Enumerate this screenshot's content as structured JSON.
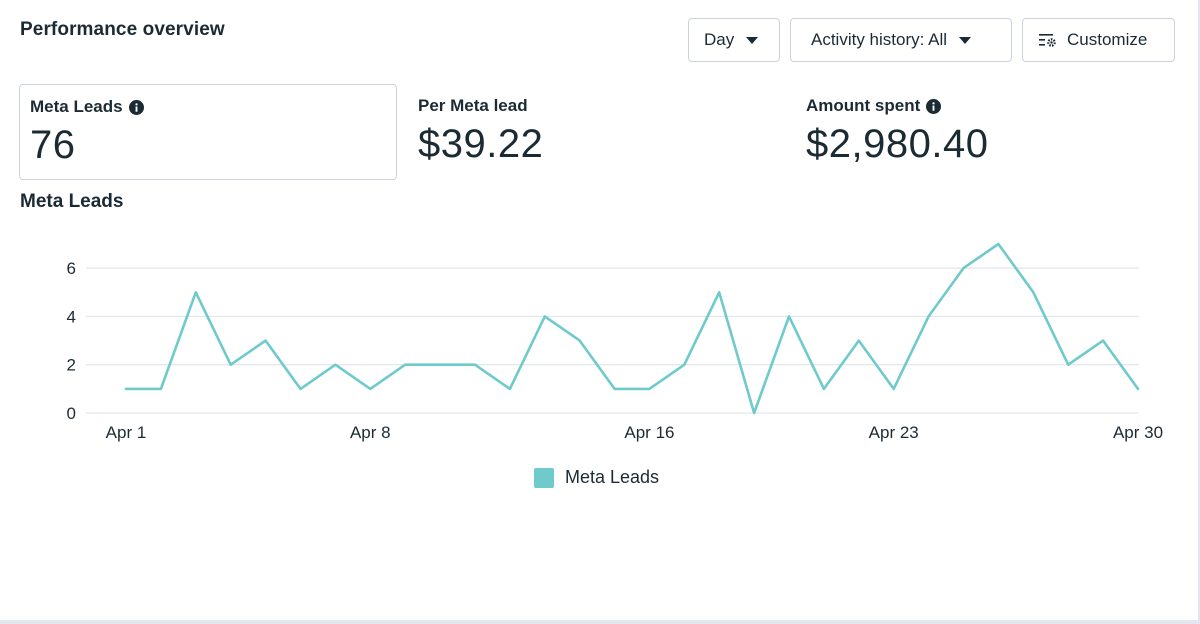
{
  "header": {
    "title": "Performance overview",
    "day_label": "Day",
    "activity_label": "Activity history: All",
    "customize_label": "Customize"
  },
  "metrics": [
    {
      "label": "Meta Leads",
      "value": "76",
      "info": true
    },
    {
      "label": "Per Meta lead",
      "value": "$39.22",
      "info": false
    },
    {
      "label": "Amount spent",
      "value": "$2,980.40",
      "info": true
    }
  ],
  "icons": {
    "info": "info-icon",
    "caret": "caret-down-icon",
    "customize": "customize-settings-icon"
  },
  "colors": {
    "series": "#6fcacb",
    "grid": "#e3e6ea",
    "text": "#1c2b33"
  },
  "chart": {
    "title": "Meta Leads",
    "legend_label": "Meta Leads"
  },
  "chart_data": {
    "type": "line",
    "title": "Meta Leads",
    "xlabel": "",
    "ylabel": "",
    "x": [
      "Apr 1",
      "Apr 2",
      "Apr 3",
      "Apr 4",
      "Apr 5",
      "Apr 6",
      "Apr 7",
      "Apr 8",
      "Apr 9",
      "Apr 10",
      "Apr 11",
      "Apr 12",
      "Apr 13",
      "Apr 14",
      "Apr 15",
      "Apr 16",
      "Apr 17",
      "Apr 18",
      "Apr 19",
      "Apr 20",
      "Apr 21",
      "Apr 22",
      "Apr 23",
      "Apr 24",
      "Apr 25",
      "Apr 26",
      "Apr 27",
      "Apr 28",
      "Apr 29",
      "Apr 30"
    ],
    "x_ticks": [
      "Apr 1",
      "Apr 8",
      "Apr 16",
      "Apr 23",
      "Apr 30"
    ],
    "series": [
      {
        "name": "Meta Leads",
        "values": [
          1,
          1,
          5,
          2,
          3,
          1,
          2,
          1,
          2,
          2,
          2,
          1,
          4,
          3,
          1,
          1,
          2,
          5,
          0,
          4,
          1,
          3,
          1,
          4,
          6,
          7,
          5,
          2,
          3,
          1
        ]
      }
    ],
    "ylim": [
      0,
      7
    ],
    "y_ticks": [
      0,
      2,
      4,
      6
    ],
    "grid": true,
    "legend": "bottom-center"
  }
}
